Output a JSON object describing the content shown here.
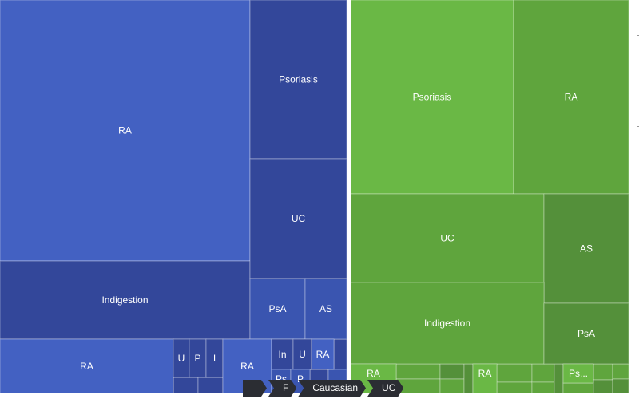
{
  "colors": {
    "blue_base": "#4361c2",
    "blue_dark": "#33479a",
    "blue_mid": "#3a55b0",
    "green_base": "#6ab845",
    "green_mid": "#5fa53d",
    "green_dark": "#54903a",
    "breadcrumb_bg": "#2b2d33",
    "text": "#ffffff"
  },
  "chart_data": {
    "type": "treemap",
    "breadcrumb": [
      "",
      "F",
      "Caucasian",
      "UC"
    ],
    "groups": [
      {
        "color": "blue",
        "children": [
          {
            "label": "RA",
            "value": 100
          },
          {
            "label": "Indigestion",
            "value": 31
          },
          {
            "label": "Psoriasis",
            "value": 20
          },
          {
            "label": "UC",
            "value": 17
          },
          {
            "label": "PsA",
            "value": 8
          },
          {
            "label": "AS",
            "value": 6
          },
          {
            "label": "RA",
            "value": 14
          },
          {
            "label": "U",
            "value": 2
          },
          {
            "label": "P",
            "value": 2
          },
          {
            "label": "I",
            "value": 2
          },
          {
            "label": "RA",
            "value": 9
          },
          {
            "label": "In",
            "value": 3
          },
          {
            "label": "U",
            "value": 2
          },
          {
            "label": "RA",
            "value": 2
          },
          {
            "label": "Ps",
            "value": 1
          },
          {
            "label": "P",
            "value": 1
          }
        ]
      },
      {
        "color": "green",
        "children": [
          {
            "label": "Psoriasis",
            "value": 50
          },
          {
            "label": "RA",
            "value": 36
          },
          {
            "label": "UC",
            "value": 28
          },
          {
            "label": "AS",
            "value": 16
          },
          {
            "label": "Indigestion",
            "value": 25
          },
          {
            "label": "PsA",
            "value": 12
          },
          {
            "label": "RA",
            "value": 7
          },
          {
            "label": "RA",
            "value": 4
          },
          {
            "label": "Ps...",
            "value": 4
          }
        ]
      }
    ]
  }
}
